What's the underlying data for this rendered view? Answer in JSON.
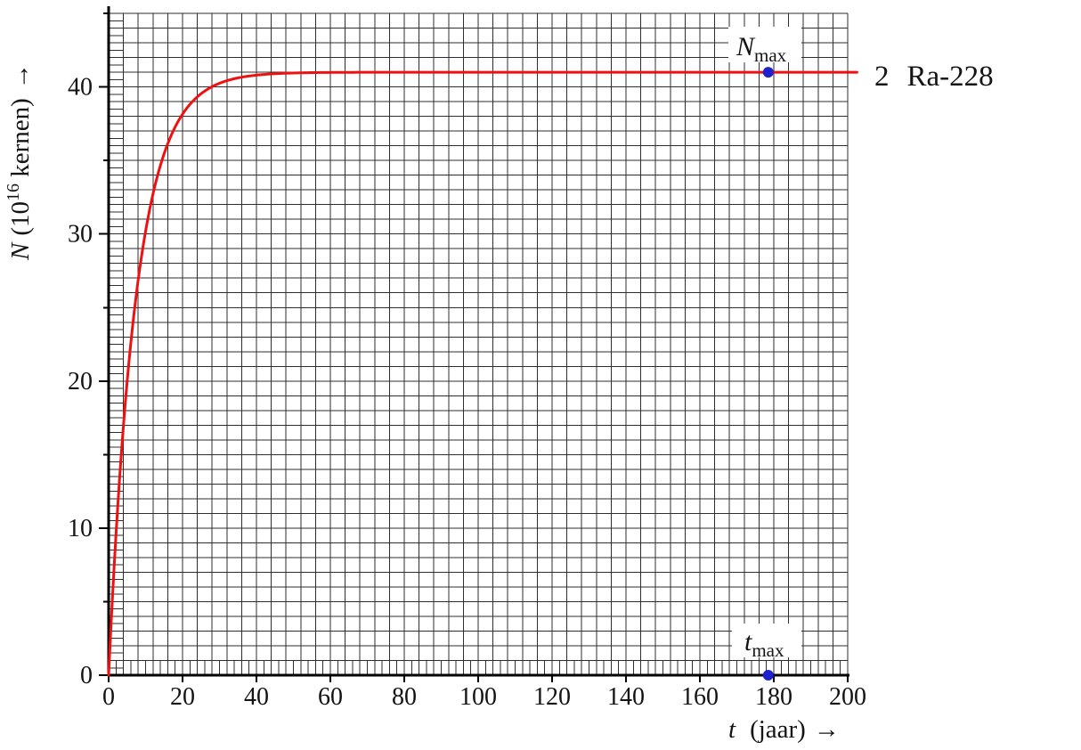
{
  "figure": {
    "background": "#ffffff",
    "text_color": "#141414"
  },
  "chart_data": {
    "type": "line",
    "title": "",
    "xlabel": {
      "variable": "t",
      "unit": "(jaar)",
      "arrow": "→"
    },
    "ylabel": {
      "variable": "N",
      "open": "(10",
      "exponent": "16",
      "close": " kernen)",
      "arrow": "→"
    },
    "x_range": [
      0,
      200
    ],
    "y_range": [
      0,
      45
    ],
    "x_tick_step": 20,
    "x_tick_labels": [
      "0",
      "20",
      "40",
      "60",
      "80",
      "100",
      "120",
      "140",
      "160",
      "180",
      "200"
    ],
    "y_tick_step_labeled": 10,
    "y_tick_step_medium": 5,
    "y_tick_labels": [
      "0",
      "10",
      "20",
      "30",
      "40"
    ],
    "grid": {
      "on": true,
      "x_minor_step_years": 4,
      "y_minor_step_units": 1,
      "x_fine_step_years": 2,
      "y_fine_step_units": 0.5
    },
    "series": [
      {
        "name": "2 Ra-228",
        "label_index": "2",
        "label_isotope": "Ra-228",
        "color": "#ee1111",
        "N_max": 41,
        "half_life_jaar": 5.2,
        "t_end": 202.5,
        "samples_t_N": [
          [
            0,
            0
          ],
          [
            2,
            9.6
          ],
          [
            4,
            16.9
          ],
          [
            6,
            22.6
          ],
          [
            8,
            26.9
          ],
          [
            10,
            30.2
          ],
          [
            15,
            35.5
          ],
          [
            20,
            38.1
          ],
          [
            25,
            39.5
          ],
          [
            30,
            40.2
          ],
          [
            40,
            40.8
          ],
          [
            60,
            41
          ],
          [
            100,
            41
          ],
          [
            150,
            41
          ],
          [
            200,
            41
          ]
        ]
      }
    ],
    "points": [
      {
        "name": "nmax",
        "base": "N",
        "sub": "max",
        "t": 178.5,
        "N": 41,
        "color": "#2020cc"
      },
      {
        "name": "tmax",
        "base": "t",
        "sub": "max",
        "t": 178.5,
        "N": 0,
        "color": "#2020cc"
      }
    ]
  }
}
